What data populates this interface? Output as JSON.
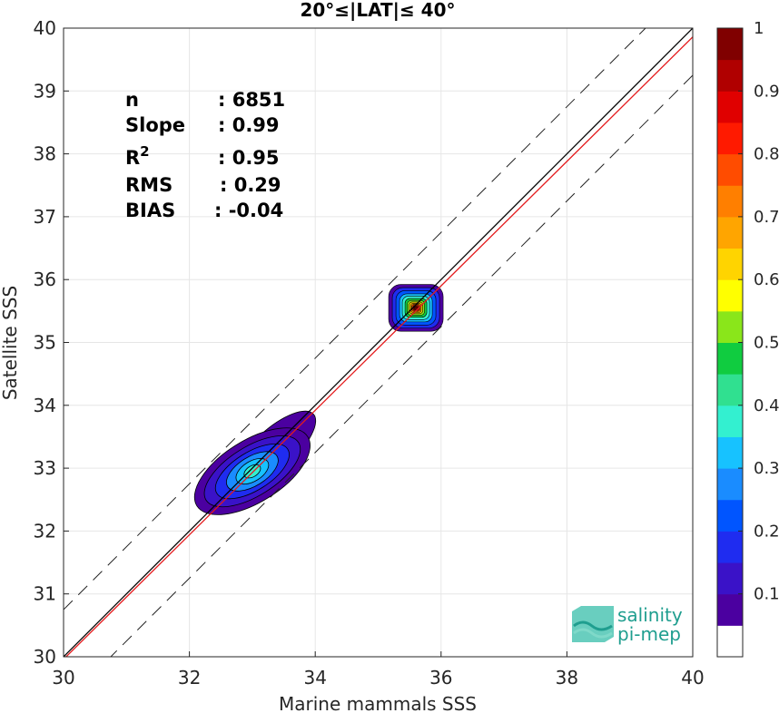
{
  "chart_data": {
    "type": "density_contour_scatter",
    "title": "20°≤|LAT|≤ 40°",
    "xlabel": "Marine mammals SSS",
    "ylabel": "Satellite SSS",
    "xlim": [
      30,
      40
    ],
    "ylim": [
      30,
      40
    ],
    "xticks": [
      "30",
      "32",
      "34",
      "36",
      "38",
      "40"
    ],
    "yticks": [
      "30",
      "31",
      "32",
      "33",
      "34",
      "35",
      "36",
      "37",
      "38",
      "39",
      "40"
    ],
    "grid": true,
    "reference_lines": {
      "identity": {
        "slope": 1,
        "intercept": 0,
        "color": "#000000"
      },
      "fit": {
        "slope": 0.99,
        "intercept": 0.26,
        "color": "#e41a1c"
      },
      "bounds": [
        {
          "slope": 1,
          "intercept": 0.75,
          "style": "dashed"
        },
        {
          "slope": 1,
          "intercept": -0.75,
          "style": "dashed"
        }
      ]
    },
    "clusters": [
      {
        "x": 33.0,
        "y": 32.95,
        "peak_density": 0.45
      },
      {
        "x": 35.6,
        "y": 35.55,
        "peak_density": 1.0
      }
    ],
    "stats": [
      {
        "name": "n",
        "value": ": 6851"
      },
      {
        "name": "Slope",
        "value": ": 0.99"
      },
      {
        "name": "R",
        "sup": "2",
        "value": ": 0.95"
      },
      {
        "name": "RMS",
        "value": ": 0.29"
      },
      {
        "name": "BIAS",
        "value": ": -0.04"
      }
    ],
    "colorbar": {
      "range": [
        0,
        1
      ],
      "tick_labels": [
        "0.1",
        "0.2",
        "0.3",
        "0.4",
        "0.5",
        "0.6",
        "0.7",
        "0.8",
        "0.9",
        "1"
      ],
      "colors": [
        "#ffffff",
        "#4b00a0",
        "#3a12c8",
        "#1f2cf0",
        "#0055ff",
        "#1a8cff",
        "#17c2ff",
        "#33f0d0",
        "#30e090",
        "#10cc40",
        "#8ae61a",
        "#ffff00",
        "#ffd400",
        "#ffa500",
        "#ff7f00",
        "#ff4c00",
        "#ff1a00",
        "#e00000",
        "#b00000",
        "#800000"
      ]
    }
  },
  "logo": {
    "line1": "salinity",
    "line2": "pi-mep"
  }
}
